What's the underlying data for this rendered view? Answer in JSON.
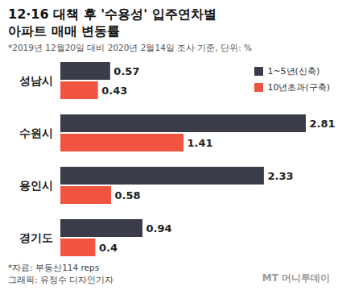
{
  "chart_data": {
    "type": "bar",
    "orientation": "horizontal",
    "title": "12·16 대책 후 '수용성' 입주연차별\n아파트 매매 변동률",
    "subtitle": "*2019년 12월20일 대비 2020년 2월14일 조사 기준, 단위: %",
    "categories": [
      "성남시",
      "수원시",
      "용인시",
      "경기도"
    ],
    "series": [
      {
        "name": "1~5년(신축)",
        "color": "#3b3c4a",
        "values": [
          0.57,
          2.81,
          2.33,
          0.94
        ]
      },
      {
        "name": "10년초과(구축)",
        "color": "#f0533f",
        "values": [
          0.43,
          1.41,
          0.58,
          0.4
        ]
      }
    ],
    "xlim": [
      0,
      2.81
    ],
    "data_labels": true,
    "tick_labels": "y",
    "legend": "top-right",
    "caption": [
      "*자료: 부동산114 reps",
      "그래픽: 유정수 디자인기자"
    ],
    "watermark": "MT 머니투데이"
  }
}
